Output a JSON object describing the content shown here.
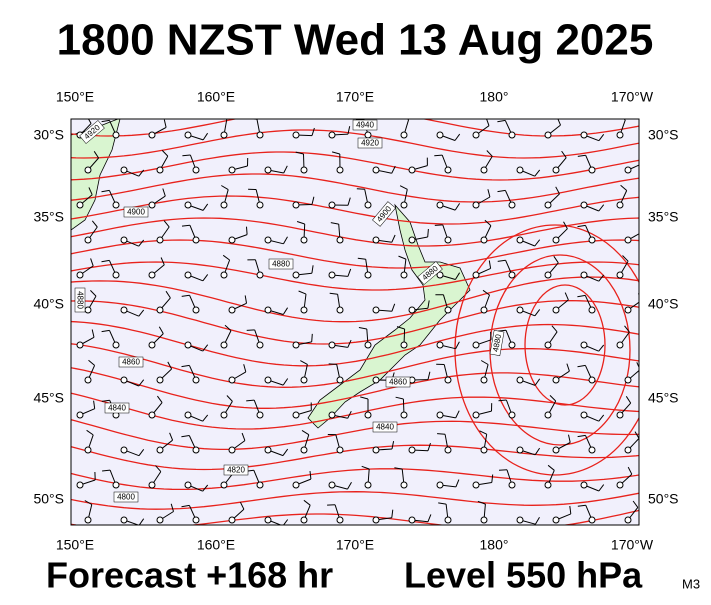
{
  "title": "1800 NZST Wed 13 Aug 2025",
  "longitude_labels_top": [
    "150°E",
    "160°E",
    "170°E",
    "180°",
    "170°W"
  ],
  "longitude_labels_bottom": [
    "150°E",
    "160°E",
    "170°E",
    "180°",
    "170°W"
  ],
  "latitude_labels_left": [
    "30°S",
    "35°S",
    "40°S",
    "45°S",
    "50°S"
  ],
  "latitude_labels_right": [
    "30°S",
    "35°S",
    "40°S",
    "45°S",
    "50°S"
  ],
  "contour_labels": [
    "4940",
    "4920",
    "4920",
    "4900",
    "4900",
    "4880",
    "4880",
    "4880",
    "4880",
    "4860",
    "4860",
    "4840",
    "4840",
    "4820",
    "4800"
  ],
  "footer": {
    "forecast": "Forecast +168 hr",
    "level": "Level 550 hPa",
    "model": "M3"
  }
}
